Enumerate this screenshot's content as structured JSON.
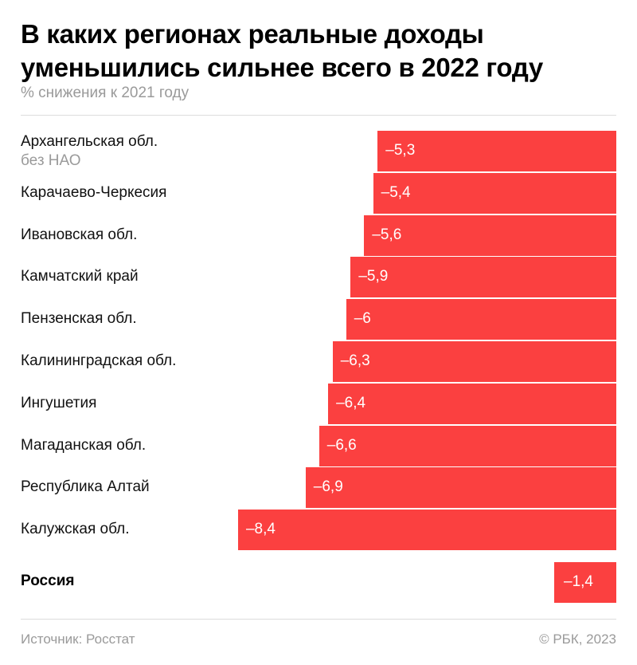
{
  "title_line1": "В каких регионах реальные доходы",
  "title_line2": "уменьшились сильнее всего в 2022 году",
  "subtitle": "% снижения к 2021 году",
  "chart_data": {
    "type": "bar",
    "orientation": "horizontal",
    "title": "В каких регионах реальные доходы уменьшились сильнее всего в 2022 году",
    "subtitle": "% снижения к 2021 году",
    "xlim": [
      -8.4,
      0
    ],
    "categories": [
      "Архангельская обл. без НАО",
      "Карачаево-Черкесия",
      "Ивановская обл.",
      "Камчатский край",
      "Пензенская обл.",
      "Калининградская обл.",
      "Ингушетия",
      "Магаданская обл.",
      "Республика Алтай",
      "Калужская обл."
    ],
    "values": [
      -5.3,
      -5.4,
      -5.6,
      -5.9,
      -6,
      -6.3,
      -6.4,
      -6.6,
      -6.9,
      -8.4
    ],
    "rows": [
      {
        "label": "Архангельская обл.",
        "sublabel": "без НАО",
        "value": -5.3,
        "display": "–5,3"
      },
      {
        "label": "Карачаево-Черкесия",
        "value": -5.4,
        "display": "–5,4"
      },
      {
        "label": "Ивановская обл.",
        "value": -5.6,
        "display": "–5,6"
      },
      {
        "label": "Камчатский край",
        "value": -5.9,
        "display": "–5,9"
      },
      {
        "label": "Пензенская обл.",
        "value": -6,
        "display": "–6"
      },
      {
        "label": "Калининградская обл.",
        "value": -6.3,
        "display": "–6,3"
      },
      {
        "label": "Ингушетия",
        "value": -6.4,
        "display": "–6,4"
      },
      {
        "label": "Магаданская обл.",
        "value": -6.6,
        "display": "–6,6"
      },
      {
        "label": "Республика Алтай",
        "value": -6.9,
        "display": "–6,9"
      },
      {
        "label": "Калужская обл.",
        "value": -8.4,
        "display": "–8,4"
      }
    ],
    "summary": {
      "label": "Россия",
      "value": -1.4,
      "display": "–1,4"
    },
    "bar_color": "#fb4040"
  },
  "footer": {
    "source": "Источник: Росстат",
    "copyright": "© РБК, 2023"
  }
}
